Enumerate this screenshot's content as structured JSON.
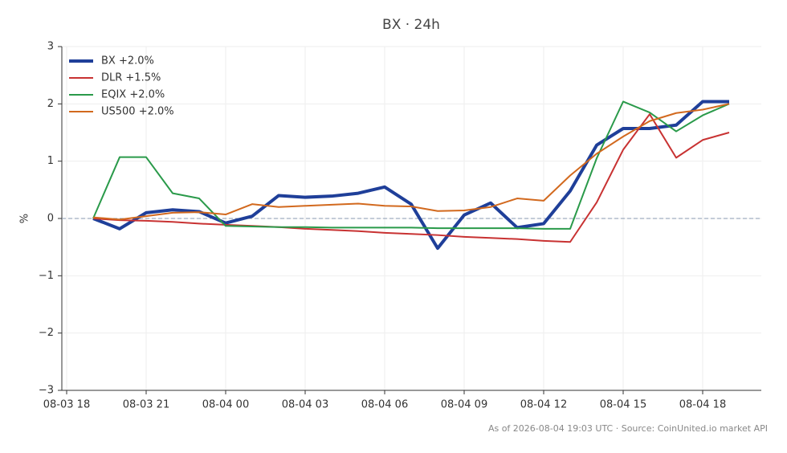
{
  "chart_data": {
    "type": "line",
    "title": "BX · 24h",
    "y_label": "%",
    "footer": "As of 2026-08-04 19:03 UTC · Source: CoinUnited.io market API",
    "x": [
      "08-03 19",
      "08-03 20",
      "08-03 21",
      "08-03 22",
      "08-03 23",
      "08-04 00",
      "08-04 01",
      "08-04 02",
      "08-04 03",
      "08-04 04",
      "08-04 05",
      "08-04 06",
      "08-04 07",
      "08-04 08",
      "08-04 09",
      "08-04 10",
      "08-04 11",
      "08-04 12",
      "08-04 13",
      "08-04 14",
      "08-04 15",
      "08-04 16",
      "08-04 17",
      "08-04 18",
      "08-04 19"
    ],
    "series": [
      {
        "name": "BX +2.0%",
        "color": "#1f3f99",
        "width": 4,
        "values": [
          0,
          -0.18,
          0.1,
          0.15,
          0.12,
          -0.08,
          0.04,
          0.4,
          0.37,
          0.39,
          0.44,
          0.55,
          0.25,
          -0.52,
          0.06,
          0.27,
          -0.16,
          -0.09,
          0.48,
          1.28,
          1.57,
          1.57,
          1.63,
          2.04,
          2.04
        ]
      },
      {
        "name": "DLR +1.5%",
        "color": "#c83232",
        "width": 2,
        "values": [
          0,
          -0.03,
          -0.04,
          -0.06,
          -0.09,
          -0.11,
          -0.13,
          -0.15,
          -0.18,
          -0.2,
          -0.22,
          -0.25,
          -0.27,
          -0.29,
          -0.32,
          -0.34,
          -0.36,
          -0.39,
          -0.41,
          0.28,
          1.2,
          1.82,
          1.06,
          1.37,
          1.5
        ]
      },
      {
        "name": "EQIX +2.0%",
        "color": "#2a9a4a",
        "width": 2,
        "values": [
          0,
          1.07,
          1.07,
          0.44,
          0.35,
          -0.13,
          -0.14,
          -0.15,
          -0.15,
          -0.16,
          -0.16,
          -0.16,
          -0.16,
          -0.17,
          -0.17,
          -0.17,
          -0.17,
          -0.18,
          -0.18,
          1.05,
          2.04,
          1.85,
          1.52,
          1.8,
          2.0
        ]
      },
      {
        "name": "US500 +2.0%",
        "color": "#d2691e",
        "width": 2,
        "values": [
          0.02,
          -0.02,
          0.04,
          0.1,
          0.11,
          0.07,
          0.25,
          0.2,
          0.22,
          0.24,
          0.26,
          0.22,
          0.21,
          0.13,
          0.14,
          0.2,
          0.35,
          0.31,
          0.75,
          1.13,
          1.43,
          1.7,
          1.84,
          1.9,
          2.0
        ]
      }
    ],
    "xlim": [
      "08-03 18",
      "08-04 20"
    ],
    "xticks": [
      "08-03 18",
      "08-03 21",
      "08-04 00",
      "08-04 03",
      "08-04 06",
      "08-04 09",
      "08-04 12",
      "08-04 15",
      "08-04 18"
    ],
    "ylim": [
      -3,
      3
    ],
    "yticks": [
      {
        "value": -3,
        "label": "−3"
      },
      {
        "value": -2,
        "label": "−2"
      },
      {
        "value": -1,
        "label": "−1"
      },
      0,
      1,
      2,
      3
    ],
    "grid": true,
    "zero_line": true,
    "legend": "upper left"
  }
}
